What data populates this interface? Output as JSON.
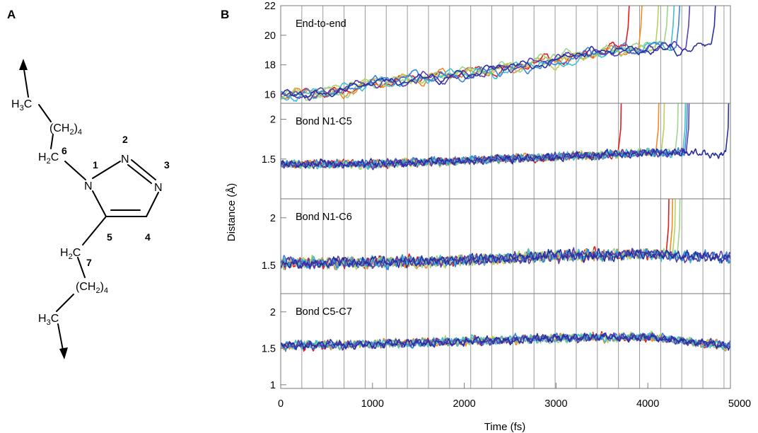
{
  "panel_a": {
    "letter": "A",
    "atoms": {
      "h3c_top": "H",
      "h3c_top_sub": "3",
      "h3c_top_c": "C",
      "ch2_4_top_open": "(CH",
      "ch2_4_top_sub1": "2",
      "ch2_4_top_close": ")",
      "ch2_4_top_sub2": "4",
      "h2c_6": "H",
      "h2c_6_sub": "2",
      "h2c_6_c": "C",
      "n1": "N",
      "n2": "N",
      "n3": "N",
      "h2c_7": "H",
      "h2c_7_sub": "2",
      "h2c_7_c": "C",
      "ch2_4_bot_open": "(CH",
      "ch2_4_bot_sub1": "2",
      "ch2_4_bot_close": ")",
      "ch2_4_bot_sub2": "4",
      "h3c_bot": "H",
      "h3c_bot_sub": "3",
      "h3c_bot_c": "C"
    },
    "numbers": {
      "n1": "1",
      "n2": "2",
      "n3": "3",
      "c4": "4",
      "c5": "5",
      "c6": "6",
      "c7": "7"
    }
  },
  "panel_b": {
    "letter": "B"
  },
  "chart_data": {
    "type": "line",
    "xlabel": "Time (fs)",
    "ylabel": "Distance (Å)",
    "x_range": [
      0,
      4900
    ],
    "x_ticks": [
      "0",
      "1000",
      "2000",
      "3000",
      "4000",
      "5000"
    ],
    "x_tick_values": [
      0,
      1000,
      2000,
      3000,
      4000,
      5000
    ],
    "grid": "vertical lines",
    "series_colors": [
      "#e41a1c",
      "#f08a24",
      "#b8d15a",
      "#9fd48a",
      "#3fbfd0",
      "#3a86d8",
      "#5a3fb0",
      "#2b2f9e"
    ],
    "subplots": [
      {
        "title": "End-to-end",
        "ylim": [
          15.4,
          22
        ],
        "y_ticks": [
          "16",
          "18",
          "20",
          "22"
        ],
        "y_tick_values": [
          16,
          18,
          20,
          22
        ],
        "trend": {
          "x": [
            0,
            500,
            1000,
            2000,
            3000,
            4000
          ],
          "y": [
            15.9,
            16.0,
            16.8,
            17.4,
            18.3,
            19.3
          ]
        },
        "break_x": [
          3760,
          3900,
          4080,
          4180,
          4250,
          4310,
          4420,
          4700
        ]
      },
      {
        "title": "Bond N1-C5",
        "ylim": [
          1.0,
          2.2
        ],
        "y_ticks": [
          "1.5",
          "2"
        ],
        "y_tick_values": [
          1.5,
          2
        ],
        "trend": {
          "x": [
            0,
            1000,
            2000,
            3000,
            4000
          ],
          "y": [
            1.43,
            1.44,
            1.48,
            1.53,
            1.58
          ]
        },
        "break_x": [
          3680,
          4090,
          4150,
          4300,
          4380,
          4400,
          4420,
          4850
        ]
      },
      {
        "title": "Bond N1-C6",
        "ylim": [
          1.2,
          2.2
        ],
        "y_ticks": [
          "1.5",
          "2"
        ],
        "y_tick_values": [
          1.5,
          2
        ],
        "trend": {
          "x": [
            0,
            1000,
            2000,
            3000,
            4000,
            4900
          ],
          "y": [
            1.52,
            1.53,
            1.55,
            1.6,
            1.62,
            1.58
          ]
        },
        "break_x": [
          4200,
          4240,
          4270,
          4320,
          null,
          null,
          null,
          null
        ]
      },
      {
        "title": "Bond C5-C7",
        "ylim": [
          0.95,
          2.25
        ],
        "y_ticks": [
          "1",
          "1.5",
          "2"
        ],
        "y_tick_values": [
          1,
          1.5,
          2
        ],
        "trend": {
          "x": [
            0,
            1000,
            2000,
            3000,
            4000,
            4900
          ],
          "y": [
            1.54,
            1.56,
            1.6,
            1.64,
            1.66,
            1.53
          ]
        },
        "break_x": [
          null,
          null,
          null,
          null,
          null,
          null,
          null,
          null
        ]
      }
    ]
  }
}
